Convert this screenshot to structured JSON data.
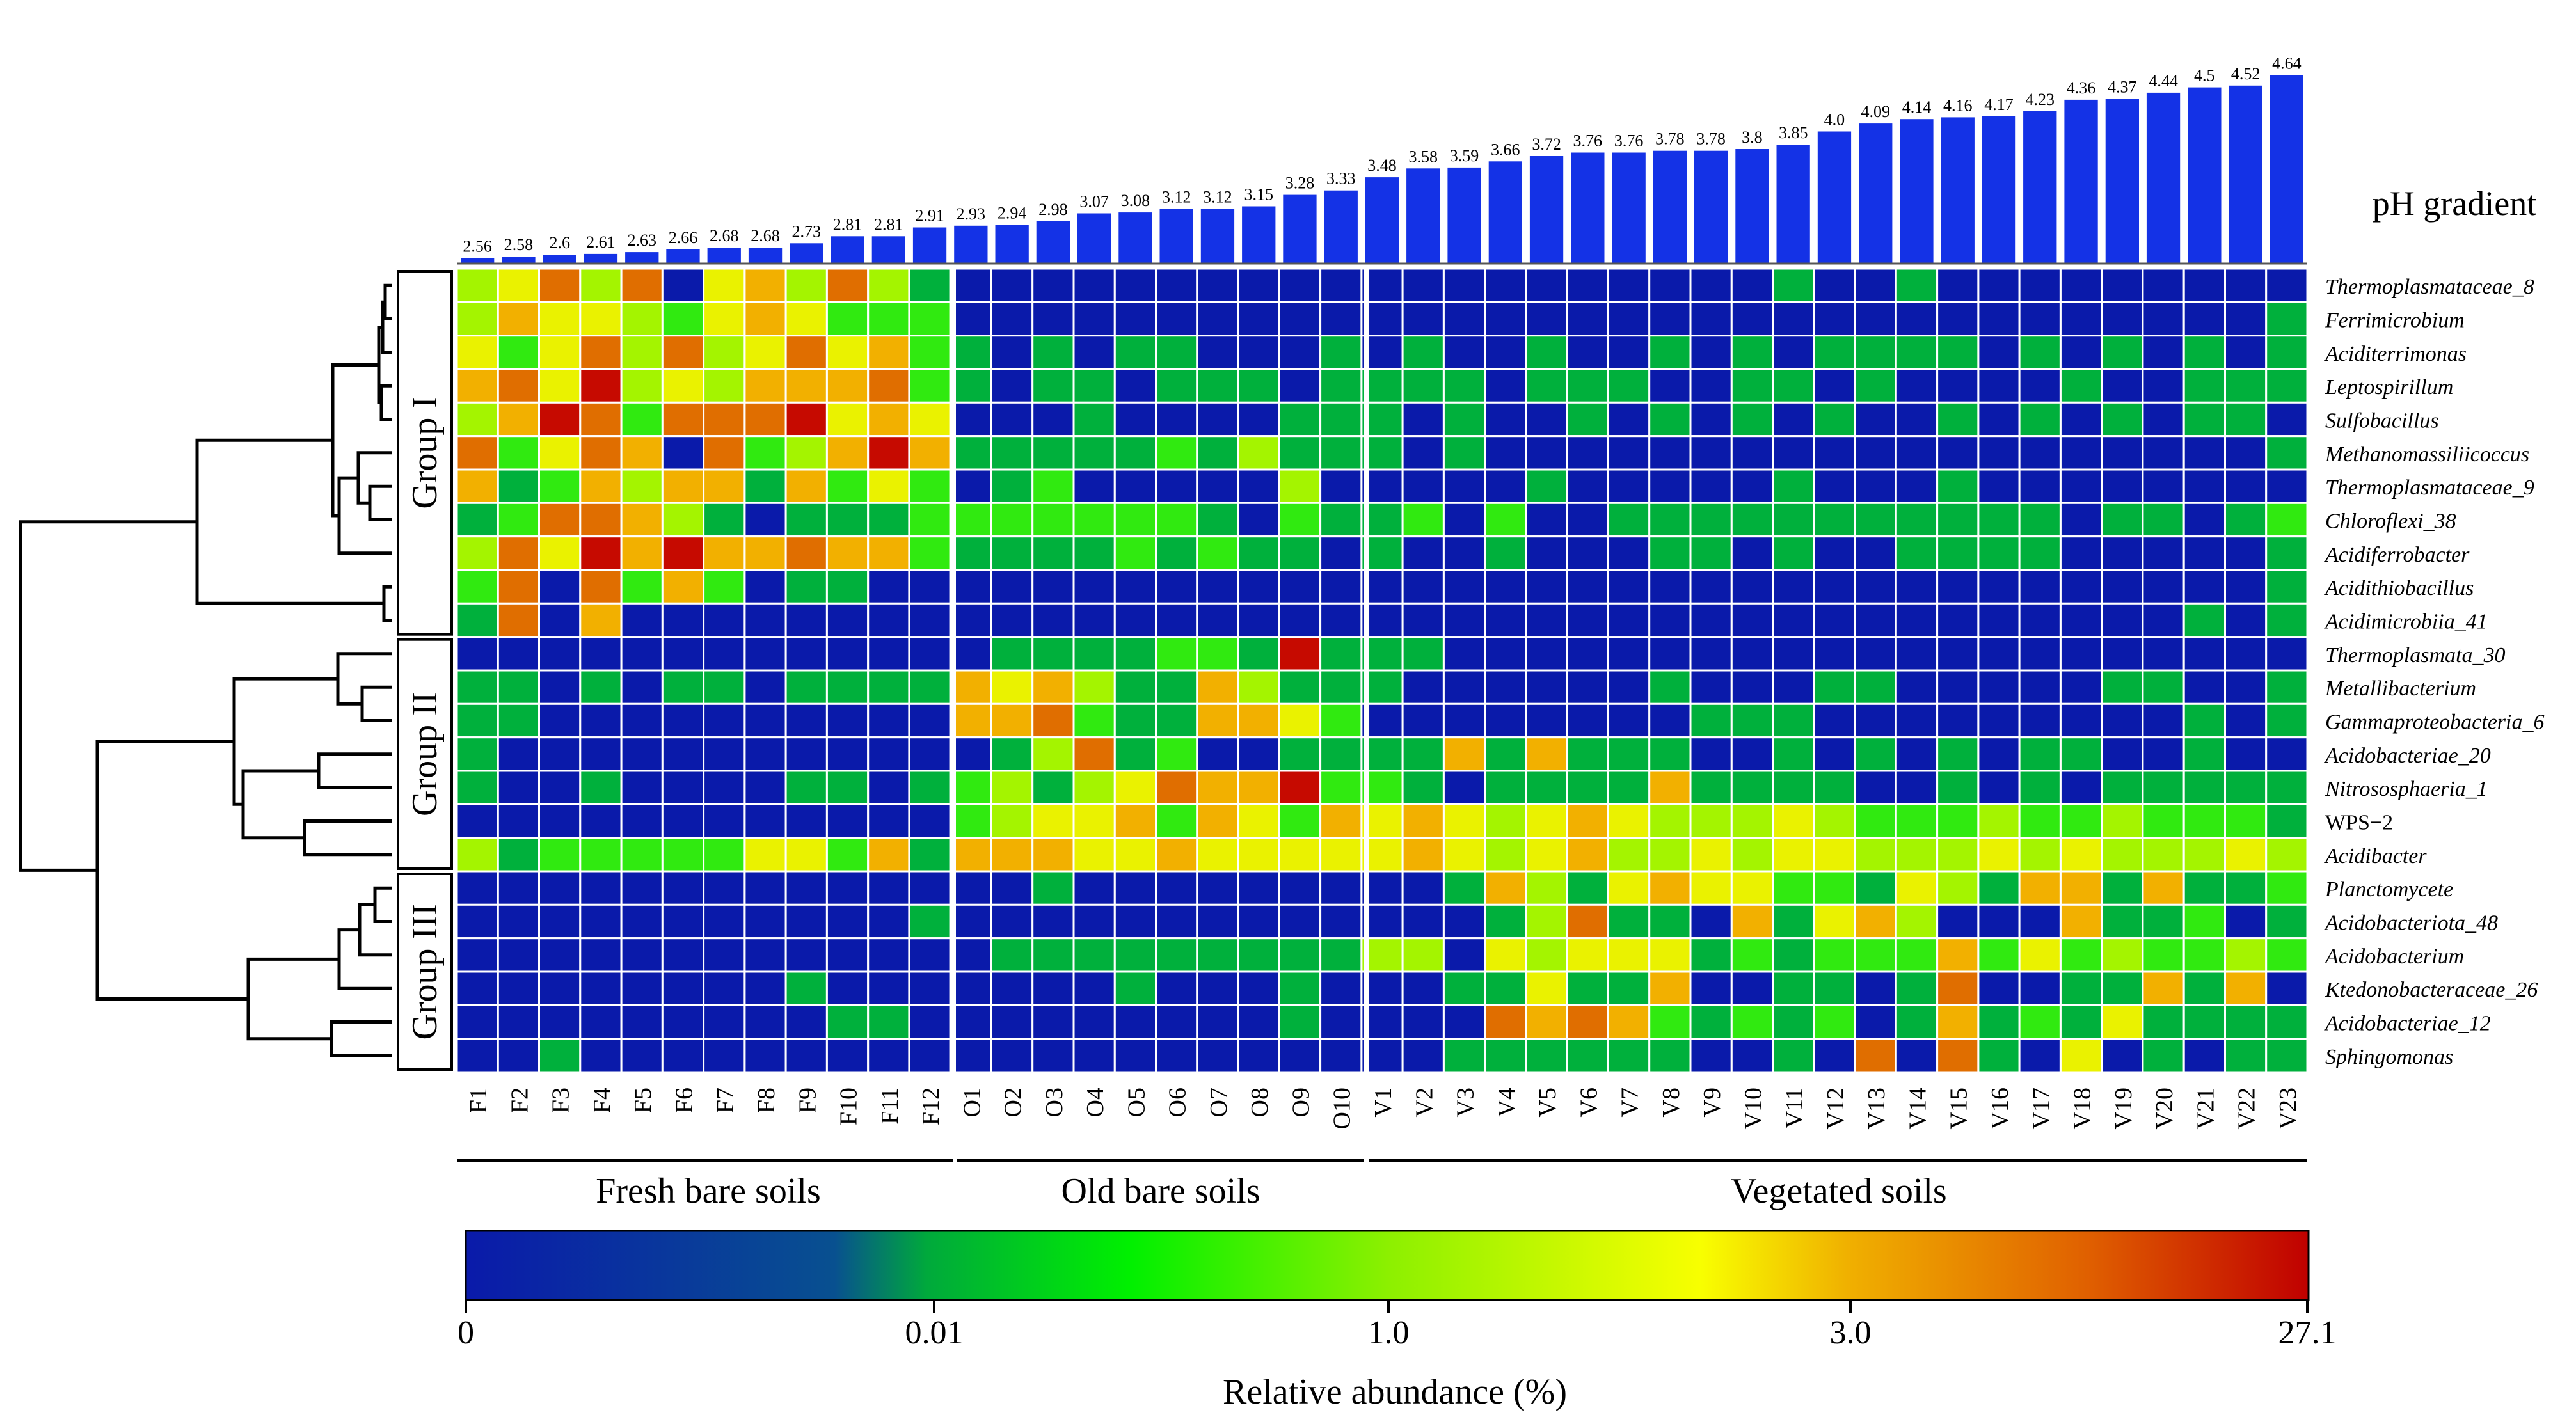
{
  "chart_data": {
    "type": "heatmap",
    "samples": [
      "F1",
      "F2",
      "F3",
      "F4",
      "F5",
      "F6",
      "F7",
      "F8",
      "F9",
      "F10",
      "F11",
      "F12",
      "O1",
      "O2",
      "O3",
      "O4",
      "O5",
      "O6",
      "O7",
      "O8",
      "O9",
      "O10",
      "V1",
      "V2",
      "V3",
      "V4",
      "V5",
      "V6",
      "V7",
      "V8",
      "V9",
      "V10",
      "V11",
      "V12",
      "V13",
      "V14",
      "V15",
      "V16",
      "V17",
      "V18",
      "V19",
      "V20",
      "V21",
      "V22",
      "V23"
    ],
    "ph_label": "pH gradient",
    "ph_values": [
      "2.56",
      "2.58",
      "2.6",
      "2.61",
      "2.63",
      "2.66",
      "2.68",
      "2.68",
      "2.73",
      "2.81",
      "2.81",
      "2.91",
      "2.93",
      "2.94",
      "2.98",
      "3.07",
      "3.08",
      "3.12",
      "3.12",
      "3.15",
      "3.28",
      "3.33",
      "3.48",
      "3.58",
      "3.59",
      "3.66",
      "3.72",
      "3.76",
      "3.76",
      "3.78",
      "3.78",
      "3.8",
      "3.85",
      "4.0",
      "4.09",
      "4.14",
      "4.16",
      "4.17",
      "4.23",
      "4.36",
      "4.37",
      "4.44",
      "4.5",
      "4.52",
      "4.64"
    ],
    "taxa": [
      {
        "name": "Thermoplasmataceae_8",
        "italic": true
      },
      {
        "name": "Ferrimicrobium",
        "italic": true
      },
      {
        "name": "Aciditerrimonas",
        "italic": true
      },
      {
        "name": "Leptospirillum",
        "italic": true
      },
      {
        "name": "Sulfobacillus",
        "italic": true
      },
      {
        "name": "Methanomassiliicoccus",
        "italic": true
      },
      {
        "name": "Thermoplasmataceae_9",
        "italic": true
      },
      {
        "name": "Chloroflexi_38",
        "italic": true
      },
      {
        "name": "Acidiferrobacter",
        "italic": true
      },
      {
        "name": "Acidithiobacillus",
        "italic": true
      },
      {
        "name": "Acidimicrobiia_41",
        "italic": true
      },
      {
        "name": "Thermoplasmata_30",
        "italic": true
      },
      {
        "name": "Metallibacterium",
        "italic": true
      },
      {
        "name": "Gammaproteobacteria_6",
        "italic": true
      },
      {
        "name": "Acidobacteriae_20",
        "italic": true
      },
      {
        "name": "Nitrososphaeria_1",
        "italic": true
      },
      {
        "name": "WPS−2",
        "italic": false
      },
      {
        "name": "Acidibacter",
        "italic": true
      },
      {
        "name": "Planctomycete",
        "italic": true
      },
      {
        "name": "Acidobacteriota_48",
        "italic": true
      },
      {
        "name": "Acidobacterium",
        "italic": true
      },
      {
        "name": "Ktedonobacteraceae_26",
        "italic": true
      },
      {
        "name": "Acidobacteriae_12",
        "italic": true
      },
      {
        "name": "Sphingomonas",
        "italic": true
      }
    ],
    "matrix_encoding": "one string per taxon, one character per sample; 0=<0.01% (blue), 1=~0.01-0.1% (green), 2=~0.1-1% (bright green), 3=~1-2% (yellow-green), 4=~2-3% (yellow), 5=~3-8% (orange), 6=~8-15% (dark orange), 7=>15% (red)",
    "matrix": [
      "346360453631000000000000000000001001000000000",
      "354432454222000000000000000000000000000000001",
      "424636346452101011000101001001010111101010101",
      "564734355562101101110111101110011010000100111",
      "357626667454000100001110100101010100101010110",
      "624650623575111112131110100000000000000000001",
      "512535515242012000003000001000001000100000000",
      "126653101112222222102112020011111111111011012",
      "364757556552111121211010010001101001111000001",
      "260625201100000000000000000000000000000000001",
      "160500000000000000000000000000000000000000101",
      "000000000000011112217111000000000000000000000",
      "110101101111545311531110000001000110000011001",
      "110000000000556211554200000000111000000000101",
      "100000000000013612001111515111001010101100100",
      "100100001101231346557221011115111100101011111",
      "000000000000234452542545434543334322232232221",
      "312222244251555445444445434533434433343433343",
      "000000000000001000000000153145442214315515112",
      "000000000001000000000000013611051453000511201",
      "000000000000011111111133043444121222524232232",
      "000000001000000010001000114115001101600115150",
      "000000000110000000001000065652121201512141111",
      "001000000000000000000000111111001060610401011"
    ],
    "groups": [
      "Group I",
      "Group II",
      "Group III"
    ],
    "soil_types": [
      "Fresh bare soils",
      "Old bare soils",
      "Vegetated soils"
    ],
    "legend": {
      "title": "Relative abundance (%)",
      "tick_labels": [
        "0",
        "0.01",
        "1.0",
        "3.0",
        "27.1"
      ],
      "colors": [
        "#0a1aaa",
        "#00a93c",
        "#22f000",
        "#f8ff00",
        "#f0a800",
        "#c00000"
      ]
    }
  }
}
